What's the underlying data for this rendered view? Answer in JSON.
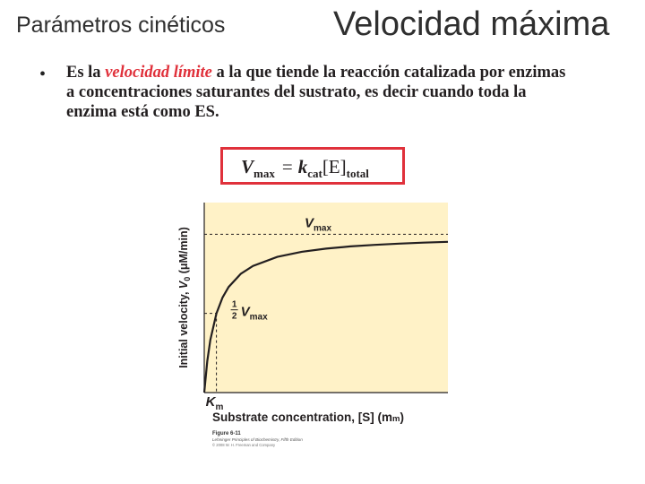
{
  "header": {
    "section_label": "Parámetros cinéticos",
    "title": "Velocidad máxima"
  },
  "bullet": {
    "marker": "•",
    "before": "Es la ",
    "highlight": "velocidad límite",
    "after": " a la que tiende la reacción catalizada por enzimas a concentraciones saturantes del sustrato, es decir cuando toda la enzima está como ES."
  },
  "equation": {
    "lhs": "V",
    "lhs_sub": "max",
    "equals": "=",
    "k": "k",
    "k_sub": "cat",
    "enzyme": "[E]",
    "enzyme_sub": "total"
  },
  "colors": {
    "accent": "#e0313b",
    "plot_background": "#fff2c7",
    "curve": "#231f20"
  },
  "chart_data": {
    "type": "line",
    "title": "",
    "xlabel": "Substrate concentration, [S] (mM)",
    "ylabel": "Initial velocity, V0 (μM/min)",
    "xlim": [
      0,
      10
    ],
    "ylim": [
      0,
      1.2
    ],
    "grid": false,
    "legend": "none",
    "xlabel_parts": {
      "main": "Substrate concentration, [S] (m",
      "unit_sc": "m",
      "close": ")"
    },
    "ylabel_parts": {
      "main": "Initial velocity, ",
      "V": "V",
      "sub": "0",
      "unit": " (μM/min)"
    },
    "annotations": {
      "vmax": {
        "label": "V",
        "sub": "max",
        "y": 1.0
      },
      "half_vmax": {
        "num": "1",
        "den": "2",
        "label": "V",
        "sub": "max",
        "y": 0.5
      },
      "km": {
        "label": "K",
        "sub": "m",
        "x": 0.5
      }
    },
    "series": [
      {
        "x": [
          0,
          0.125,
          0.25,
          0.5,
          0.75,
          1,
          1.5,
          2,
          3,
          4,
          5,
          6,
          7,
          8,
          9,
          10
        ],
        "y": [
          0,
          0.2,
          0.333,
          0.5,
          0.6,
          0.667,
          0.75,
          0.8,
          0.857,
          0.889,
          0.909,
          0.923,
          0.933,
          0.941,
          0.947,
          0.952
        ]
      }
    ]
  },
  "figure_caption": {
    "number": "Figure 6-11",
    "source": "Lehninger Principles of Biochemistry, Fifth Edition",
    "copyright": "© 2008 W. H. Freeman and Company"
  }
}
